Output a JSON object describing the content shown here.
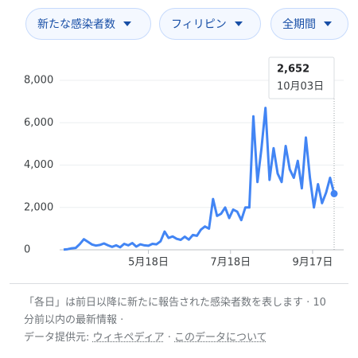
{
  "controls": [
    "新たな感染者数",
    "フィリピン",
    "全期間"
  ],
  "chart_data": {
    "type": "line",
    "color": "#4285f4",
    "x": [
      "3月16日",
      "3月19日",
      "3月22日",
      "3月25日",
      "3月28日",
      "3月31日",
      "4月3日",
      "4月6日",
      "4月9日",
      "4月12日",
      "4月15日",
      "4月18日",
      "4月21日",
      "4月24日",
      "4月27日",
      "4月30日",
      "5月3日",
      "5月6日",
      "5月9日",
      "5月12日",
      "5月15日",
      "5月18日",
      "5月21日",
      "5月24日",
      "5月27日",
      "5月30日",
      "6月2日",
      "6月5日",
      "6月8日",
      "6月11日",
      "6月14日",
      "6月17日",
      "6月20日",
      "6月23日",
      "6月26日",
      "6月29日",
      "7月2日",
      "7月5日",
      "7月8日",
      "7月11日",
      "7月14日",
      "7月17日",
      "7月20日",
      "7月23日",
      "7月26日",
      "7月29日",
      "8月1日",
      "8月4日",
      "8月7日",
      "8月10日",
      "8月13日",
      "8月16日",
      "8月19日",
      "8月22日",
      "8月25日",
      "8月28日",
      "8月31日",
      "9月3日",
      "9月6日",
      "9月9日",
      "9月12日",
      "9月15日",
      "9月18日",
      "9月21日",
      "9月24日",
      "9月27日",
      "9月30日",
      "10月03日"
    ],
    "values": [
      10,
      30,
      70,
      90,
      270,
      500,
      380,
      250,
      200,
      230,
      300,
      210,
      140,
      210,
      120,
      280,
      210,
      320,
      150,
      260,
      210,
      190,
      280,
      260,
      400,
      860,
      560,
      630,
      520,
      470,
      620,
      480,
      700,
      660,
      950,
      1100,
      1000,
      2400,
      1600,
      1700,
      2000,
      1500,
      1900,
      1800,
      1400,
      2000,
      2000,
      6300,
      3200,
      4800,
      6700,
      3300,
      4800,
      3600,
      3200,
      4900,
      3800,
      3400,
      4200,
      2900,
      5300,
      3400,
      2000,
      3100,
      2200,
      2700,
      3400,
      2652
    ],
    "xlim": [
      "3月16日",
      "10月03日"
    ],
    "xticks": [
      "5月18日",
      "7月18日",
      "9月17日"
    ],
    "ylim": [
      0,
      8000
    ],
    "yticks": [
      0,
      {
        "value": 2000,
        "label": "2,000"
      },
      {
        "value": 4000,
        "label": "4,000"
      },
      {
        "value": 6000,
        "label": "6,000"
      },
      {
        "value": 8000,
        "label": "8,000"
      }
    ],
    "grid": true,
    "tooltip": "2,652"
  },
  "footer": {
    "note": "「各日」は前日以降に新たに報告された感染者数を表します · 10 分前以内の最新情報 ·",
    "source_label": "データ提供元:",
    "source_link": "ウィキペディア",
    "separator": "·",
    "about_link": "このデータについて"
  }
}
